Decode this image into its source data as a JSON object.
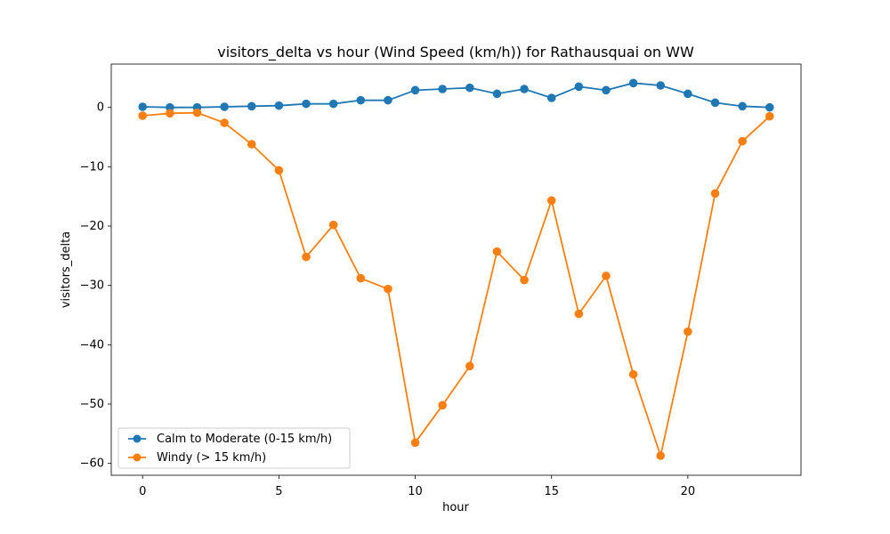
{
  "chart_data": {
    "type": "line",
    "title": "visitors_delta vs hour (Wind Speed (km/h)) for Rathausquai on WW",
    "xlabel": "hour",
    "ylabel": "visitors_delta",
    "x": [
      0,
      1,
      2,
      3,
      4,
      5,
      6,
      7,
      8,
      9,
      10,
      11,
      12,
      13,
      14,
      15,
      16,
      17,
      18,
      19,
      20,
      21,
      22,
      23
    ],
    "xlim": [
      -1.15,
      24.15
    ],
    "ylim": [
      -62,
      7.3
    ],
    "xticks": [
      0,
      5,
      10,
      15,
      20
    ],
    "yticks": [
      0,
      -10,
      -20,
      -30,
      -40,
      -50,
      -60
    ],
    "xtick_labels": [
      "0",
      "5",
      "10",
      "15",
      "20"
    ],
    "ytick_labels": [
      "0",
      "−10",
      "−20",
      "−30",
      "−40",
      "−50",
      "−60"
    ],
    "grid": true,
    "legend_position": "lower-left",
    "series": [
      {
        "name": "Calm to Moderate (0-15 km/h)",
        "color": "#1f77b4",
        "values": [
          0.1,
          0.0,
          0.0,
          0.1,
          0.2,
          0.3,
          0.6,
          0.6,
          1.2,
          1.2,
          2.9,
          3.1,
          3.3,
          2.3,
          3.1,
          1.6,
          3.5,
          2.9,
          4.1,
          3.7,
          2.3,
          0.8,
          0.2,
          0.0
        ]
      },
      {
        "name": "Windy (> 15 km/h)",
        "color": "#ff7f0e",
        "values": [
          -1.4,
          -1.0,
          -0.9,
          -2.6,
          -6.2,
          -10.6,
          -25.2,
          -19.8,
          -28.8,
          -30.6,
          -56.5,
          -50.2,
          -43.6,
          -24.3,
          -29.1,
          -15.7,
          -34.8,
          -28.4,
          -45.0,
          -58.7,
          -37.8,
          -14.5,
          -5.7,
          -1.5
        ]
      }
    ]
  }
}
